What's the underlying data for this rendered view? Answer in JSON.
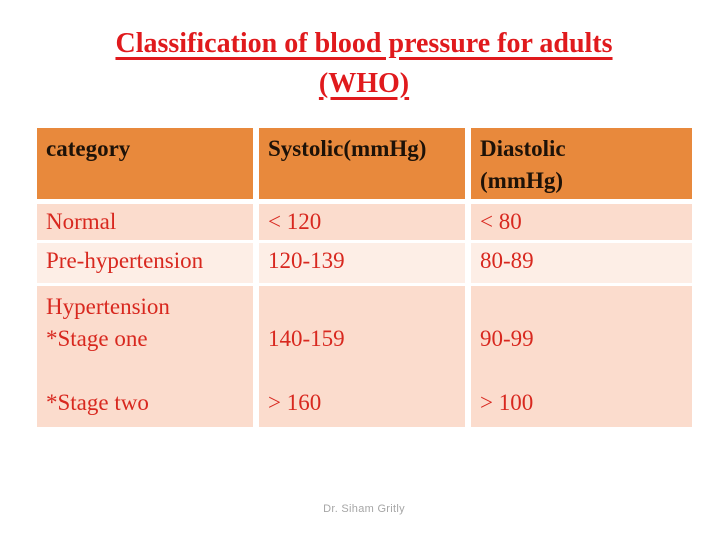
{
  "slide": {
    "title_line1": "Classification of blood pressure for adults",
    "title_line2": "(WHO)",
    "footer_credit": "Dr. Siham Gritly"
  },
  "table": {
    "headers": {
      "category": "category",
      "systolic": "Systolic(mmHg)",
      "diastolic": "Diastolic\n(mmHg)"
    },
    "rows": [
      {
        "category": "Normal",
        "systolic": "< 120",
        "diastolic": "< 80"
      },
      {
        "category": "Pre-hypertension",
        "systolic": "120-139",
        "diastolic": "80-89"
      },
      {
        "category": "Hypertension\n*Stage one\n\n*Stage two",
        "systolic": "\n140-159\n\n> 160",
        "diastolic": "\n90-99\n\n> 100"
      }
    ]
  },
  "colors": {
    "header_bg": "#e8893c",
    "row_odd_bg": "#fbdccd",
    "row_even_bg": "#fdeee6",
    "title_red": "#e01a1d",
    "cell_text_red": "#d8281f",
    "header_text": "#1d1208",
    "footer_gray": "#a6a6a6"
  }
}
